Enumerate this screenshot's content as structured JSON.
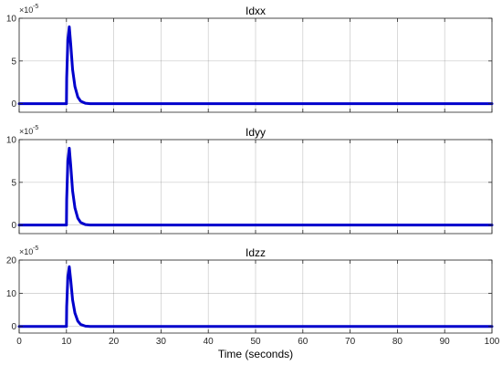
{
  "chart_data": [
    {
      "type": "line",
      "title": "Idxx",
      "exponent_base": "×10",
      "exponent_power": "-5",
      "xlim": [
        0,
        100
      ],
      "ylim": [
        -1,
        10
      ],
      "yticks": [
        0,
        5,
        10
      ],
      "xticks": [
        0,
        10,
        20,
        30,
        40,
        50,
        60,
        70,
        80,
        90,
        100
      ],
      "show_xtick_labels": false,
      "grid": true,
      "color": "#0000cc",
      "series": [
        {
          "x": [
            0,
            10,
            10.05,
            10.3,
            10.6,
            10.9,
            11.3,
            11.8,
            12.4,
            13.0,
            14.0,
            15.0,
            100
          ],
          "y": [
            0,
            0,
            3,
            7.5,
            9.0,
            7.0,
            4.0,
            2.0,
            0.8,
            0.3,
            0.05,
            0,
            0
          ]
        }
      ]
    },
    {
      "type": "line",
      "title": "Idyy",
      "exponent_base": "×10",
      "exponent_power": "-5",
      "xlim": [
        0,
        100
      ],
      "ylim": [
        -1,
        10
      ],
      "yticks": [
        0,
        5,
        10
      ],
      "xticks": [
        0,
        10,
        20,
        30,
        40,
        50,
        60,
        70,
        80,
        90,
        100
      ],
      "show_xtick_labels": false,
      "grid": true,
      "color": "#0000cc",
      "series": [
        {
          "x": [
            0,
            10,
            10.05,
            10.3,
            10.6,
            10.9,
            11.3,
            11.8,
            12.4,
            13.0,
            14.0,
            15.0,
            100
          ],
          "y": [
            0,
            0,
            3,
            7.5,
            9.0,
            7.0,
            4.0,
            2.0,
            0.8,
            0.3,
            0.05,
            0,
            0
          ]
        }
      ]
    },
    {
      "type": "line",
      "title": "Idzz",
      "exponent_base": "×10",
      "exponent_power": "-5",
      "xlim": [
        0,
        100
      ],
      "ylim": [
        -2,
        20
      ],
      "yticks": [
        0,
        10,
        20
      ],
      "xticks": [
        0,
        10,
        20,
        30,
        40,
        50,
        60,
        70,
        80,
        90,
        100
      ],
      "show_xtick_labels": true,
      "xlabel": "Time (seconds)",
      "grid": true,
      "color": "#0000cc",
      "series": [
        {
          "x": [
            0,
            10,
            10.05,
            10.3,
            10.6,
            10.9,
            11.3,
            11.8,
            12.4,
            13.0,
            14.0,
            15.0,
            100
          ],
          "y": [
            0,
            0,
            6,
            15,
            18,
            14,
            8,
            4,
            1.6,
            0.6,
            0.1,
            0,
            0
          ]
        }
      ]
    }
  ]
}
